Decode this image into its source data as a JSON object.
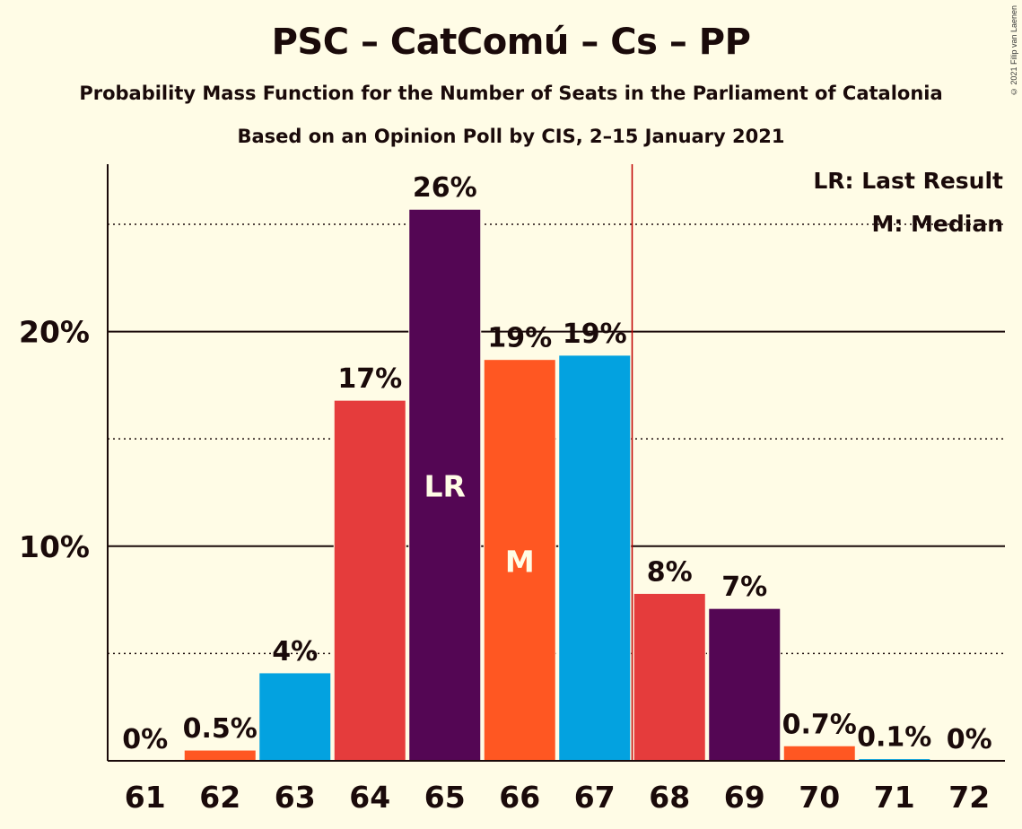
{
  "title": "PSC – CatComú – Cs – PP",
  "subtitle": "Probability Mass Function for the Number of Seats in the Parliament of Catalonia",
  "subtitle2": "Based on an Opinion Poll by CIS, 2–15 January 2021",
  "copyright": "© 2021 Filip van Laenen",
  "legend": {
    "lr": "LR: Last Result",
    "median": "M: Median"
  },
  "chart_data": {
    "type": "bar",
    "categories": [
      "61",
      "62",
      "63",
      "64",
      "65",
      "66",
      "67",
      "68",
      "69",
      "70",
      "71",
      "72"
    ],
    "values": [
      0,
      0.5,
      4.1,
      16.8,
      25.7,
      18.7,
      18.9,
      7.8,
      7.1,
      0.7,
      0.1,
      0
    ],
    "data_labels": [
      "0%",
      "0.5%",
      "4%",
      "17%",
      "26%",
      "19%",
      "19%",
      "8%",
      "7%",
      "0.7%",
      "0.1%",
      "0%"
    ],
    "bar_colors": [
      "#E53C3C",
      "#FF5722",
      "#03A2E0",
      "#E53C3C",
      "#540654",
      "#FF5722",
      "#03A2E0",
      "#E53C3C",
      "#540654",
      "#FF5722",
      "#03A2E0",
      "#E53C3C"
    ],
    "ylim": [
      0,
      27.8
    ],
    "yticks": [
      {
        "value": 10,
        "label": "10%"
      },
      {
        "value": 20,
        "label": "20%"
      }
    ],
    "minor_gridlines": [
      5,
      15,
      25
    ],
    "last_result": {
      "category": "65",
      "label": "LR",
      "line_after": "67"
    },
    "median": {
      "category": "66",
      "label": "M"
    },
    "colors": {
      "background": "#FFFCE6",
      "lr_line": "#C00000",
      "axis": "#1a0a0a",
      "bar_text": "#FFFCE6"
    }
  }
}
